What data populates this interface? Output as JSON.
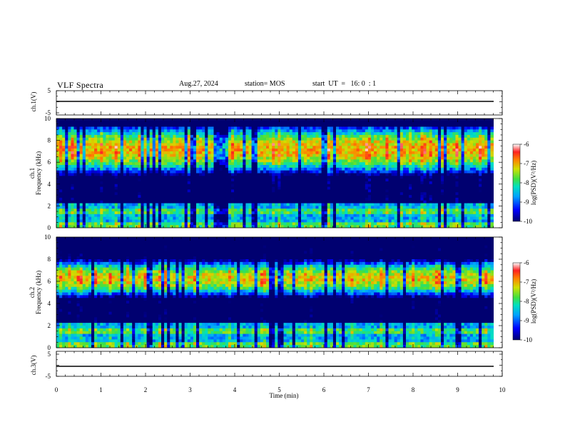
{
  "header": {
    "title": "VLF Spectra",
    "date": "Aug.27, 2024",
    "station": "station= MOS",
    "start_ut": "start  UT  =   16: 0  : 1"
  },
  "chart_data": [
    {
      "type": "line",
      "panel": "ch1-waveform",
      "ylabel": "ch.1(V)",
      "ylim": [
        -5,
        5
      ],
      "ytick_labels": [
        "5",
        "-5"
      ],
      "xlim": [
        0,
        10
      ],
      "series": [
        {
          "values_approx": 0
        }
      ]
    },
    {
      "type": "heatmap",
      "panel": "ch1-spectrogram",
      "ylabel": "ch.1\nFrequency (kHz)",
      "ylim": [
        0,
        10
      ],
      "ytick_labels": [
        "0",
        "2",
        "4",
        "6",
        "8",
        "10"
      ],
      "xlim": [
        0,
        9.8
      ],
      "colorbar": {
        "label": "log(PSD)(V²/Hz)",
        "range": [
          -10,
          -6
        ],
        "tick_labels": [
          "-6",
          "-7",
          "-8",
          "-9",
          "-10"
        ]
      },
      "dominant_band_khz": [
        5.5,
        8.8
      ],
      "band_level": -7
    },
    {
      "type": "heatmap",
      "panel": "ch2-spectrogram",
      "ylabel": "ch.2\nFrequency (kHz)",
      "ylim": [
        0,
        10
      ],
      "ytick_labels": [
        "0",
        "2",
        "4",
        "6",
        "8",
        "10"
      ],
      "xlim": [
        0,
        9.8
      ],
      "colorbar": {
        "label": "log(PSD)(V²/Hz)",
        "range": [
          -10,
          -6
        ],
        "tick_labels": [
          "-6",
          "-7",
          "-8",
          "-9",
          "-10"
        ]
      },
      "dominant_band_khz": [
        5.0,
        7.5
      ],
      "band_level": -7.2
    },
    {
      "type": "line",
      "panel": "ch3-waveform",
      "ylabel": "ch.3(V)",
      "ylim": [
        -5,
        5
      ],
      "ytick_labels": [
        "5",
        "-5"
      ],
      "xlim": [
        0,
        10
      ],
      "series": [
        {
          "values_approx": 0
        }
      ]
    }
  ],
  "xaxis": {
    "label": "Time (min)",
    "tick_labels": [
      "0",
      "1",
      "2",
      "3",
      "4",
      "5",
      "6",
      "7",
      "8",
      "9",
      "10"
    ]
  },
  "colors": {
    "low": "#000080",
    "high": "#ff2020",
    "axis": "#000000"
  }
}
